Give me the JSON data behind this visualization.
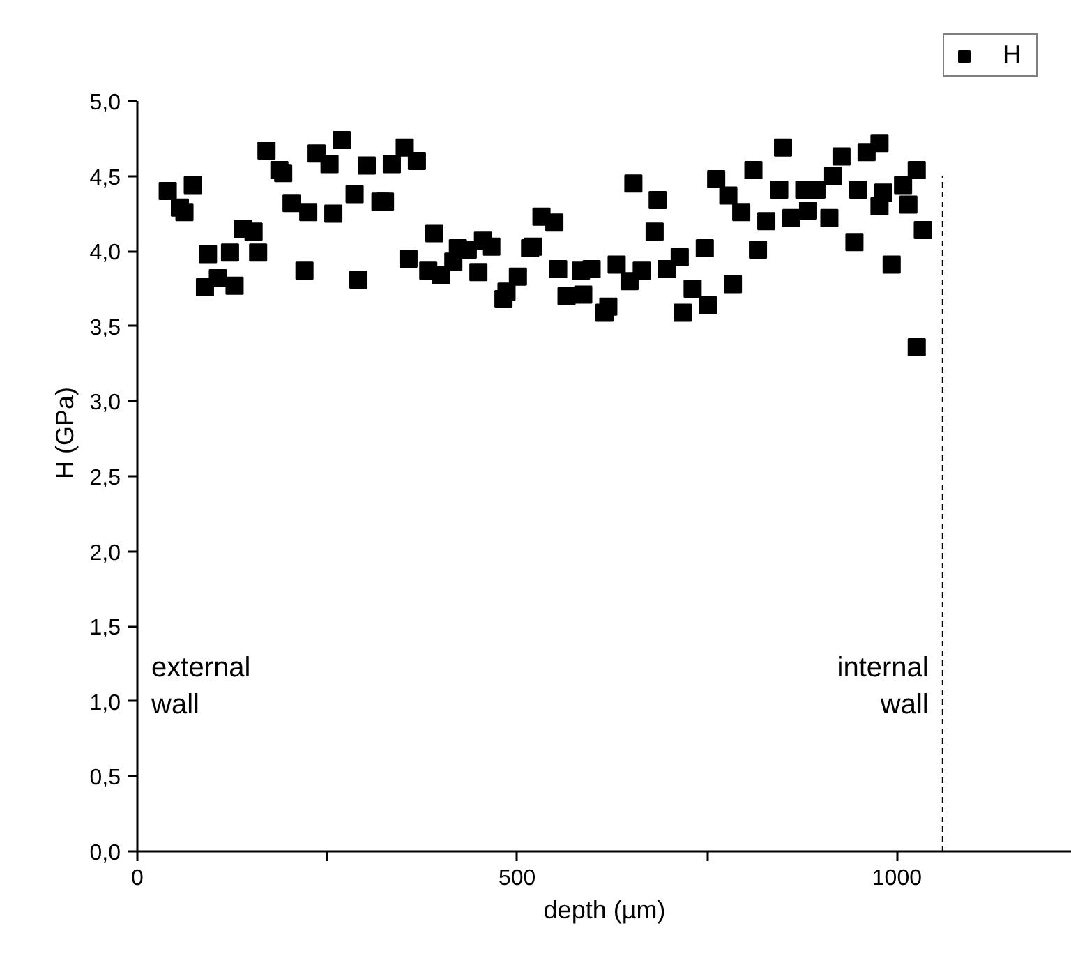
{
  "chart_data": {
    "type": "scatter",
    "xlabel": "depth (µm)",
    "ylabel": "H (GPa)",
    "xlim": [
      0,
      1230
    ],
    "ylim": [
      0,
      5
    ],
    "xticks": [
      0,
      {
        "value": 250,
        "label": null
      },
      500,
      {
        "value": 750,
        "label": null
      },
      1000
    ],
    "yticks": [
      {
        "value": 0,
        "label": "0,0"
      },
      {
        "value": 0.5,
        "label": "0,5"
      },
      {
        "value": 1,
        "label": "1,0"
      },
      {
        "value": 1.5,
        "label": "1,5"
      },
      {
        "value": 2,
        "label": "2,0"
      },
      {
        "value": 2.5,
        "label": "2,5"
      },
      {
        "value": 3,
        "label": "3,0"
      },
      {
        "value": 3.5,
        "label": "3,5"
      },
      {
        "value": 4,
        "label": "4,0"
      },
      {
        "value": 4.5,
        "label": "4,5"
      },
      {
        "value": 5,
        "label": "5,0"
      }
    ],
    "grid": false,
    "legend": "top right",
    "marker": "square",
    "annotations": [
      "external\nwall",
      "internal\nwall"
    ],
    "series": [
      {
        "name": "H",
        "color": "#000000",
        "x": [
          40,
          56,
          62,
          73,
          89,
          93,
          106,
          122,
          128,
          139,
          153,
          159,
          170,
          187,
          192,
          203,
          220,
          225,
          236,
          253,
          258,
          269,
          286,
          291,
          302,
          320,
          326,
          335,
          352,
          368,
          357,
          383,
          391,
          400,
          416,
          422,
          435,
          449,
          455,
          466,
          482,
          486,
          501,
          517,
          521,
          532,
          549,
          554,
          565,
          584,
          587,
          598,
          615,
          620,
          631,
          648,
          653,
          664,
          681,
          685,
          697,
          714,
          718,
          731,
          747,
          751,
          762,
          778,
          784,
          795,
          811,
          817,
          828,
          850,
          845,
          861,
          878,
          883,
          894,
          911,
          916,
          927,
          944,
          949,
          960,
          977,
          982,
          977,
          993,
          1008,
          1015,
          1026,
          1034,
          1026
        ],
        "values": [
          4.4,
          4.29,
          4.26,
          4.44,
          3.76,
          3.98,
          3.82,
          3.99,
          3.77,
          4.15,
          4.13,
          3.99,
          4.67,
          4.54,
          4.52,
          4.32,
          3.87,
          4.26,
          4.65,
          4.58,
          4.25,
          4.74,
          4.38,
          3.81,
          4.57,
          4.33,
          4.33,
          4.58,
          4.69,
          4.6,
          3.95,
          3.87,
          4.12,
          3.84,
          3.93,
          4.02,
          4.01,
          3.86,
          4.07,
          4.03,
          3.68,
          3.73,
          3.83,
          4.02,
          4.03,
          4.23,
          4.19,
          3.88,
          3.7,
          3.87,
          3.71,
          3.88,
          3.59,
          3.63,
          3.91,
          3.8,
          4.45,
          3.87,
          4.13,
          4.34,
          3.88,
          3.96,
          3.59,
          3.75,
          4.02,
          3.64,
          4.48,
          4.37,
          3.78,
          4.26,
          4.54,
          4.01,
          4.2,
          4.69,
          4.41,
          4.22,
          4.41,
          4.27,
          4.41,
          4.22,
          4.5,
          4.63,
          4.06,
          4.41,
          4.66,
          4.72,
          4.39,
          4.3,
          3.91,
          4.44,
          4.31,
          4.54,
          4.14,
          3.36
        ]
      },
      {
        "type": "line",
        "color": "#000000",
        "line_style": "dashed",
        "marker": "none",
        "x": [
          1060,
          1060
        ],
        "values": [
          0,
          4.5
        ]
      }
    ]
  }
}
